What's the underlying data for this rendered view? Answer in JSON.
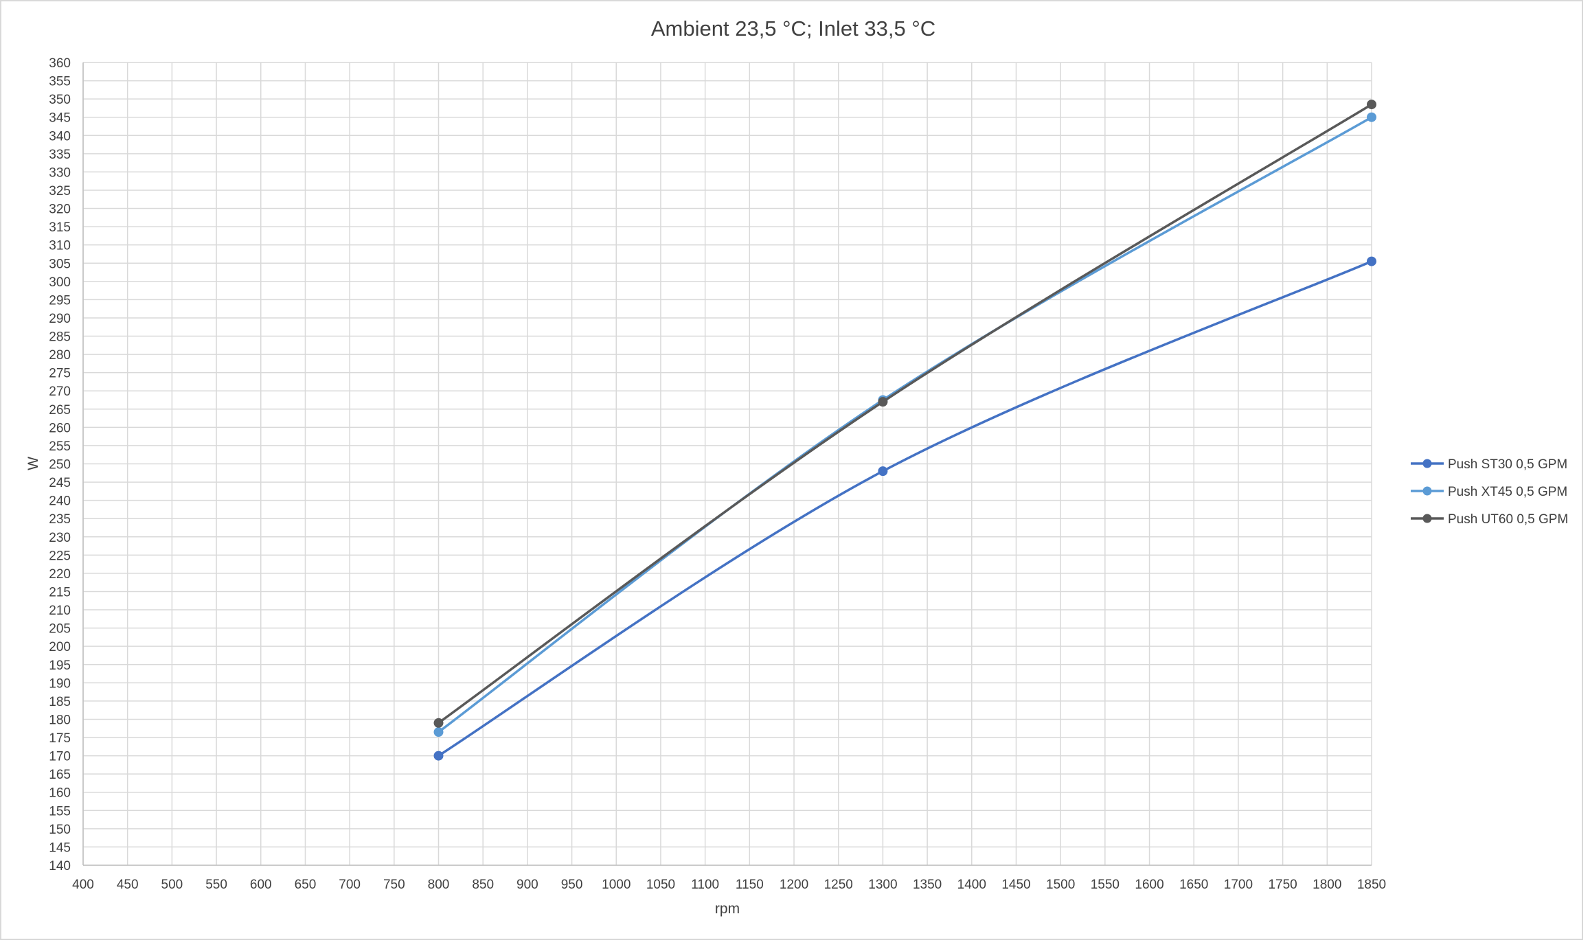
{
  "chart_data": {
    "type": "line",
    "title": "Ambient 23,5 °C; Inlet 33,5 °C",
    "xlabel": "rpm",
    "ylabel": "W",
    "xlim": [
      400,
      1850
    ],
    "ylim": [
      140,
      360
    ],
    "x_ticks": [
      400,
      450,
      500,
      550,
      600,
      650,
      700,
      750,
      800,
      850,
      900,
      950,
      1000,
      1050,
      1100,
      1150,
      1200,
      1250,
      1300,
      1350,
      1400,
      1450,
      1500,
      1550,
      1600,
      1650,
      1700,
      1750,
      1800,
      1850
    ],
    "y_ticks": [
      140,
      145,
      150,
      155,
      160,
      165,
      170,
      175,
      180,
      185,
      190,
      195,
      200,
      205,
      210,
      215,
      220,
      225,
      230,
      235,
      240,
      245,
      250,
      255,
      260,
      265,
      270,
      275,
      280,
      285,
      290,
      295,
      300,
      305,
      310,
      315,
      320,
      325,
      330,
      335,
      340,
      345,
      350,
      355,
      360
    ],
    "grid": true,
    "smooth": true,
    "legend_position": "right",
    "series": [
      {
        "name": "Push ST30 0,5 GPM",
        "color": "#4472C4",
        "x": [
          800,
          1300,
          1850
        ],
        "y": [
          170,
          248,
          305.5
        ]
      },
      {
        "name": "Push XT45 0,5 GPM",
        "color": "#5B9BD5",
        "x": [
          800,
          1300,
          1850
        ],
        "y": [
          176.5,
          267.5,
          345
        ]
      },
      {
        "name": "Push UT60 0,5 GPM",
        "color": "#595959",
        "x": [
          800,
          1300,
          1850
        ],
        "y": [
          179,
          267,
          348.5
        ]
      }
    ]
  }
}
